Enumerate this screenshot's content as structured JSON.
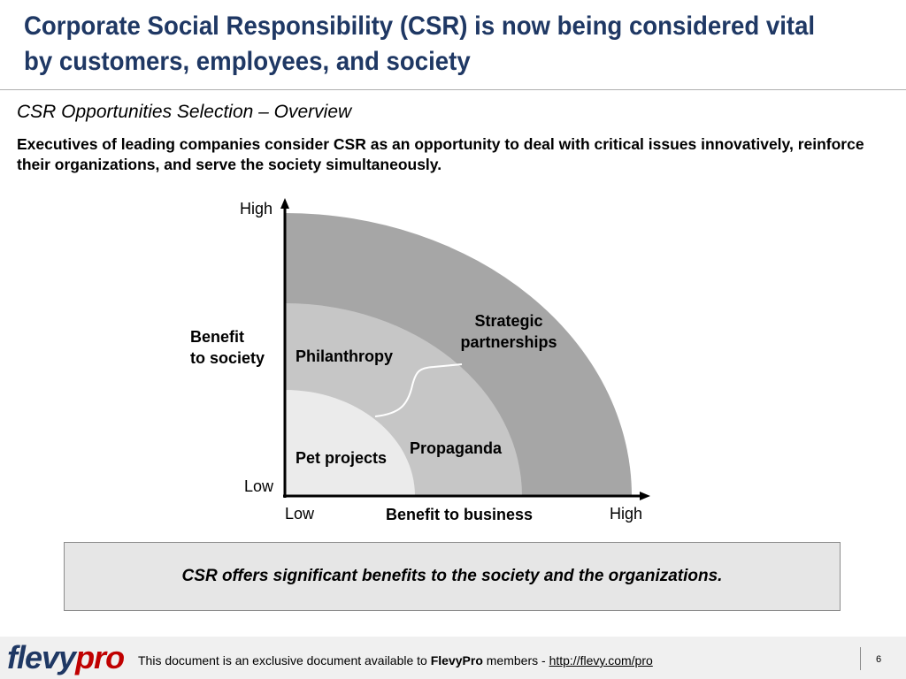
{
  "header": {
    "title": "Corporate Social Responsibility (CSR) is now being considered vital by customers, employees, and society",
    "title_line1": "Corporate Social Responsibility (CSR) is now being considered vital",
    "title_line2": "by customers, employees, and society"
  },
  "subtitle": "CSR Opportunities Selection – Overview",
  "lead": "Executives of leading companies consider CSR as an opportunity to deal with critical issues innovatively, reinforce their organizations, and serve the society simultaneously.",
  "diagram": {
    "y_axis": {
      "high": "High",
      "low": "Low",
      "label_line1": "Benefit",
      "label_line2": "to society"
    },
    "x_axis": {
      "low": "Low",
      "high": "High",
      "label": "Benefit to business"
    },
    "regions": {
      "pet_projects": "Pet projects",
      "philanthropy": "Philanthropy",
      "propaganda": "Propaganda",
      "strategic_line1": "Strategic",
      "strategic_line2": "partnerships"
    },
    "colors": {
      "inner": "#ebebeb",
      "middle": "#c6c6c6",
      "outer": "#a6a6a6",
      "axis": "#000000"
    }
  },
  "callout": "CSR offers significant benefits to the society and the organizations.",
  "footer": {
    "logo_part1": "flevy",
    "logo_part2": "pro",
    "text_before": "This document is an exclusive document available to ",
    "brand": "FlevyPro",
    "text_after": " members - ",
    "link": "http://flevy.com/pro",
    "page_number": "6"
  }
}
